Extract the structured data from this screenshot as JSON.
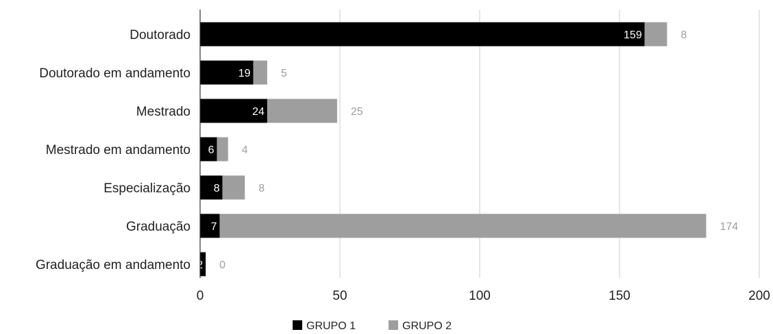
{
  "chart_data": {
    "type": "bar",
    "orientation": "horizontal",
    "stacked": true,
    "categories": [
      "Doutorado",
      "Doutorado em andamento",
      "Mestrado",
      "Mestrado em andamento",
      "Especialização",
      "Graduação",
      "Graduação em andamento"
    ],
    "series": [
      {
        "name": "GRUPO 1",
        "color": "#000000",
        "values": [
          159,
          19,
          24,
          6,
          8,
          7,
          2
        ]
      },
      {
        "name": "GRUPO 2",
        "color": "#9e9e9e",
        "values": [
          8,
          5,
          25,
          4,
          8,
          174,
          0
        ]
      }
    ],
    "xlim": [
      0,
      200
    ],
    "xticks": [
      0,
      50,
      100,
      150,
      200
    ],
    "grid": true,
    "legend": "bottom"
  }
}
